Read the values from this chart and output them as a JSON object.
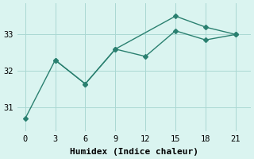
{
  "line1_x": [
    0,
    3,
    6,
    9,
    12,
    15,
    18,
    21
  ],
  "line1_y": [
    30.7,
    32.3,
    31.65,
    32.6,
    32.4,
    33.1,
    32.85,
    33.0
  ],
  "line2_x": [
    3,
    6,
    9,
    15,
    18,
    21
  ],
  "line2_y": [
    32.3,
    31.65,
    32.6,
    33.5,
    33.2,
    33.0
  ],
  "color": "#2a8070",
  "bg_color": "#daf4f0",
  "grid_color": "#aad8d3",
  "xlabel": "Humidex (Indice chaleur)",
  "xlim": [
    -0.8,
    22.5
  ],
  "ylim": [
    30.35,
    33.85
  ],
  "xticks": [
    0,
    3,
    6,
    9,
    12,
    15,
    18,
    21
  ],
  "yticks": [
    31,
    32,
    33
  ],
  "marker": "D",
  "markersize": 3,
  "linewidth": 1.0,
  "xlabel_fontsize": 8,
  "tick_fontsize": 7.5
}
